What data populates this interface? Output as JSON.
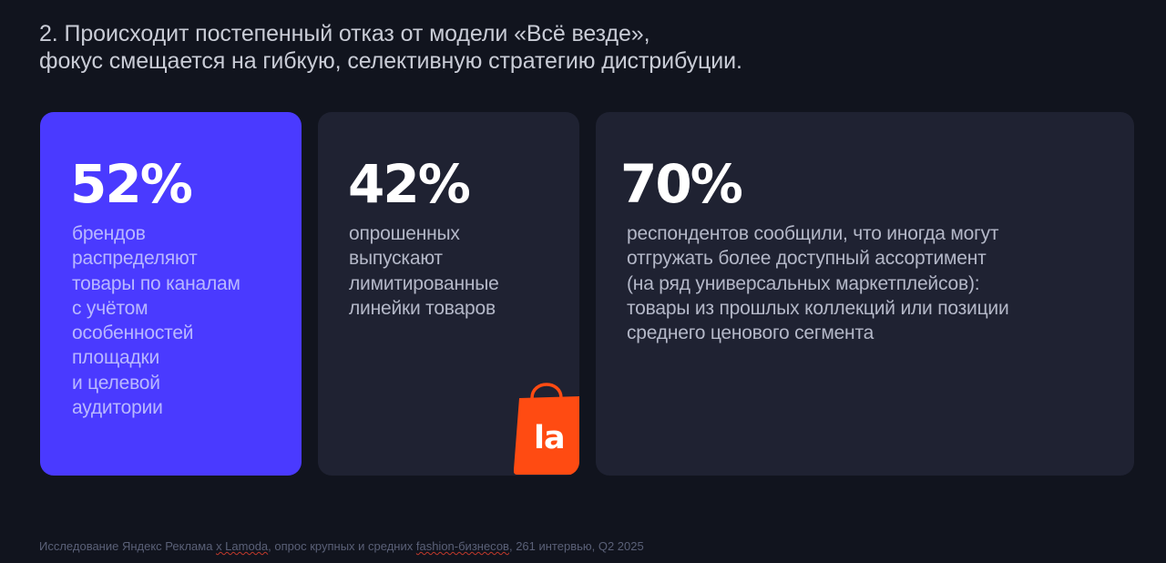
{
  "slide": {
    "title_lines": [
      "2. Происходит постепенный отказ от модели «Всё везде»,",
      "фокус смещается на гибкую, селективную стратегию дистрибуции."
    ]
  },
  "cards": [
    {
      "stat": "52%",
      "description_lines": [
        "брендов",
        "распределяют",
        "товары по каналам",
        "с учётом",
        "особенностей",
        "площадки",
        "и целевой",
        "аудитории"
      ]
    },
    {
      "stat": "42%",
      "description_lines": [
        "опрошенных",
        "выпускают",
        "лимитированные",
        "линейки товаров"
      ],
      "logo": {
        "icon": "lamoda-shopping-bag-icon",
        "text": "la",
        "color": "#ff4b12"
      }
    },
    {
      "stat": "70%",
      "description_lines": [
        "респондентов сообщили, что иногда могут",
        "отгружать более доступный ассортимент",
        "(на ряд универсальных маркетплейсов):",
        "товары из прошлых коллекций или позиции",
        "среднего ценового сегмента"
      ]
    }
  ],
  "footnote": {
    "part1": "Исследование Яндекс Реклама ",
    "part2": "x Lamoda",
    "part3": ", опрос крупных и средних ",
    "part4": "fashion-бизнесов",
    "part5": ", 261 интервью, Q2 2025"
  },
  "colors": {
    "background": "#11141e",
    "accent_card": "#4a3aff",
    "dark_card": "#1f2232",
    "logo_orange": "#ff4b12"
  }
}
